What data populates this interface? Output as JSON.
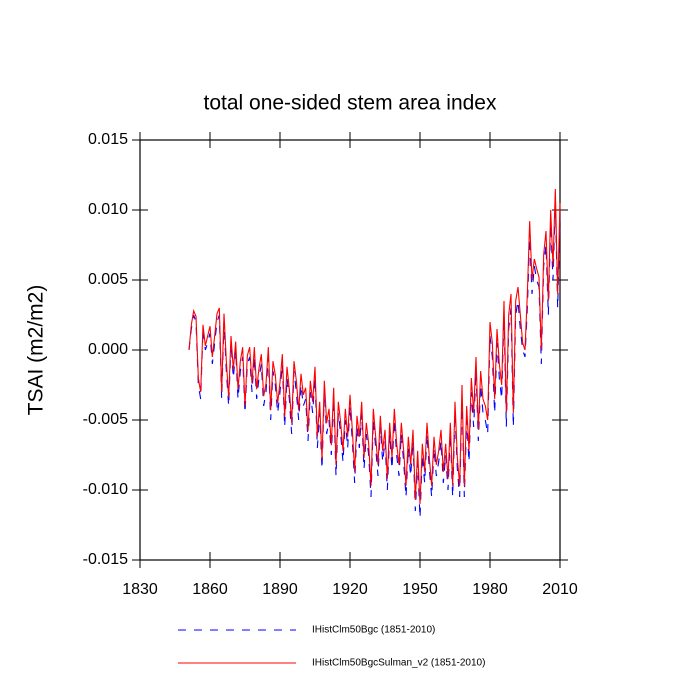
{
  "chart_data": {
    "type": "line",
    "title": "total one-sided stem area index",
    "y_label": "TSAI  (m2/m2)",
    "x": [
      1851,
      1852,
      1853,
      1854,
      1855,
      1856,
      1857,
      1858,
      1859,
      1860,
      1861,
      1862,
      1863,
      1864,
      1865,
      1866,
      1867,
      1868,
      1869,
      1870,
      1871,
      1872,
      1873,
      1874,
      1875,
      1876,
      1877,
      1878,
      1879,
      1880,
      1881,
      1882,
      1883,
      1884,
      1885,
      1886,
      1887,
      1888,
      1889,
      1890,
      1891,
      1892,
      1893,
      1894,
      1895,
      1896,
      1897,
      1898,
      1899,
      1900,
      1901,
      1902,
      1903,
      1904,
      1905,
      1906,
      1907,
      1908,
      1909,
      1910,
      1911,
      1912,
      1913,
      1914,
      1915,
      1916,
      1917,
      1918,
      1919,
      1920,
      1921,
      1922,
      1923,
      1924,
      1925,
      1926,
      1927,
      1928,
      1929,
      1930,
      1931,
      1932,
      1933,
      1934,
      1935,
      1936,
      1937,
      1938,
      1939,
      1940,
      1941,
      1942,
      1943,
      1944,
      1945,
      1946,
      1947,
      1948,
      1949,
      1950,
      1951,
      1952,
      1953,
      1954,
      1955,
      1956,
      1957,
      1958,
      1959,
      1960,
      1961,
      1962,
      1963,
      1964,
      1965,
      1966,
      1967,
      1968,
      1969,
      1970,
      1971,
      1972,
      1973,
      1974,
      1975,
      1976,
      1977,
      1978,
      1979,
      1980,
      1981,
      1982,
      1983,
      1984,
      1985,
      1986,
      1987,
      1988,
      1989,
      1990,
      1991,
      1992,
      1993,
      1994,
      1995,
      1996,
      1997,
      1998,
      1999,
      2000,
      2001,
      2002,
      2003,
      2004,
      2005,
      2006,
      2007,
      2008,
      2009,
      2010
    ],
    "series": [
      {
        "name": "IHistClm50Bgc (1851-2010)",
        "color": "#0000ff",
        "dash": "8,8",
        "values": [
          0.0,
          0.0015,
          0.0025,
          0.002,
          -0.0025,
          -0.0035,
          0.0015,
          0.0,
          0.0005,
          0.0012,
          -0.001,
          0.0005,
          0.002,
          0.0025,
          -0.0035,
          0.002,
          -0.0015,
          -0.004,
          0.0005,
          -0.002,
          0.0,
          -0.0035,
          -0.0015,
          -0.0005,
          -0.0045,
          -0.001,
          -0.0005,
          -0.003,
          -0.0005,
          -0.0035,
          -0.002,
          -0.001,
          -0.004,
          -0.003,
          -0.0005,
          -0.005,
          -0.0015,
          -0.0025,
          -0.0045,
          -0.003,
          -0.001,
          -0.0055,
          -0.002,
          -0.0035,
          -0.006,
          -0.0015,
          -0.003,
          -0.005,
          -0.0025,
          -0.004,
          -0.0035,
          -0.0065,
          -0.003,
          -0.0045,
          -0.002,
          -0.007,
          -0.0045,
          -0.0085,
          -0.003,
          -0.006,
          -0.005,
          -0.0075,
          -0.0035,
          -0.009,
          -0.0045,
          -0.006,
          -0.008,
          -0.005,
          -0.007,
          -0.004,
          -0.0065,
          -0.0095,
          -0.0055,
          -0.007,
          -0.0045,
          -0.0085,
          -0.006,
          -0.0075,
          -0.0105,
          -0.005,
          -0.007,
          -0.009,
          -0.0055,
          -0.008,
          -0.0065,
          -0.01,
          -0.006,
          -0.0085,
          -0.005,
          -0.0075,
          -0.009,
          -0.006,
          -0.008,
          -0.0105,
          -0.007,
          -0.009,
          -0.0065,
          -0.0115,
          -0.008,
          -0.012,
          -0.0075,
          -0.0095,
          -0.006,
          -0.0085,
          -0.0105,
          -0.007,
          -0.009,
          -0.008,
          -0.0065,
          -0.0095,
          -0.0075,
          -0.01,
          -0.006,
          -0.0105,
          -0.0045,
          -0.0085,
          -0.0105,
          -0.0035,
          -0.0105,
          -0.005,
          -0.008,
          -0.003,
          -0.0055,
          -0.0015,
          -0.0065,
          -0.0025,
          -0.0045,
          -0.005,
          -0.006,
          0.001,
          -0.0005,
          -0.0045,
          0.0005,
          -0.002,
          -0.0035,
          0.0025,
          -0.0055,
          0.0015,
          0.003,
          -0.0055,
          0.0025,
          0.0035,
          0.0015,
          0.0,
          -0.0005,
          0.003,
          0.008,
          0.004,
          0.006,
          0.005,
          0.0045,
          -0.001,
          0.006,
          0.0075,
          0.0025,
          0.009,
          0.005,
          0.0105,
          0.003,
          0.0095
        ]
      },
      {
        "name": "IHistClm50BgcSulman_v2 (1851-2010)",
        "color": "#ff0000",
        "values": [
          0.0,
          0.0018,
          0.0028,
          0.0024,
          -0.002,
          -0.003,
          0.0018,
          0.0003,
          0.001,
          0.0017,
          -0.0005,
          0.001,
          0.0026,
          0.003,
          -0.003,
          0.0026,
          -0.0008,
          -0.0034,
          0.001,
          -0.0014,
          0.0006,
          -0.0028,
          -0.0008,
          0.0002,
          -0.004,
          -0.0004,
          0.0002,
          -0.0024,
          0.0002,
          -0.0028,
          -0.0013,
          -0.0003,
          -0.0033,
          -0.0024,
          0.0002,
          -0.0043,
          -0.0008,
          -0.0018,
          -0.0038,
          -0.0023,
          -0.0003,
          -0.0048,
          -0.0012,
          -0.0028,
          -0.0052,
          -0.0008,
          -0.0022,
          -0.0043,
          -0.0017,
          -0.0032,
          -0.0027,
          -0.0058,
          -0.0022,
          -0.0037,
          -0.0012,
          -0.0062,
          -0.0037,
          -0.0078,
          -0.0022,
          -0.0052,
          -0.0042,
          -0.0068,
          -0.0027,
          -0.0082,
          -0.0037,
          -0.0052,
          -0.0072,
          -0.0042,
          -0.0062,
          -0.0032,
          -0.0057,
          -0.0087,
          -0.0047,
          -0.0062,
          -0.0037,
          -0.0077,
          -0.0052,
          -0.0067,
          -0.0097,
          -0.0042,
          -0.0062,
          -0.0082,
          -0.0047,
          -0.0072,
          -0.0057,
          -0.0092,
          -0.0052,
          -0.0077,
          -0.0042,
          -0.0067,
          -0.0082,
          -0.0052,
          -0.0072,
          -0.0097,
          -0.0062,
          -0.0082,
          -0.0057,
          -0.0107,
          -0.0072,
          -0.011,
          -0.0067,
          -0.0087,
          -0.0052,
          -0.0077,
          -0.0097,
          -0.0062,
          -0.0082,
          -0.0072,
          -0.0057,
          -0.0087,
          -0.0067,
          -0.0092,
          -0.0052,
          -0.0097,
          -0.0037,
          -0.0077,
          -0.0097,
          -0.0025,
          -0.0097,
          -0.004,
          -0.0072,
          -0.002,
          -0.0045,
          -0.0005,
          -0.0057,
          -0.0015,
          -0.0035,
          -0.004,
          -0.005,
          0.002,
          0.0005,
          -0.0035,
          0.0015,
          -0.001,
          -0.0025,
          0.0035,
          -0.0045,
          0.0025,
          0.004,
          -0.0045,
          0.0035,
          0.0045,
          0.0025,
          0.0005,
          0.0,
          0.004,
          0.0092,
          0.005,
          0.0065,
          0.0058,
          0.0052,
          0.0,
          0.0068,
          0.0085,
          0.0035,
          0.01,
          0.006,
          0.0115,
          0.004,
          0.0105
        ]
      }
    ],
    "xlim": [
      1830,
      2010
    ],
    "xticks": [
      1830,
      1860,
      1890,
      1920,
      1950,
      1980,
      2010
    ],
    "ylim": [
      -0.015,
      0.015
    ],
    "yticks": [
      -0.015,
      {
        "value": -0.01,
        "label": "-0.010"
      },
      -0.005,
      {
        "value": 0,
        "label": "0.000"
      },
      0.005,
      {
        "value": 0.01,
        "label": "0.010"
      },
      0.015
    ],
    "legend": "bottom"
  }
}
